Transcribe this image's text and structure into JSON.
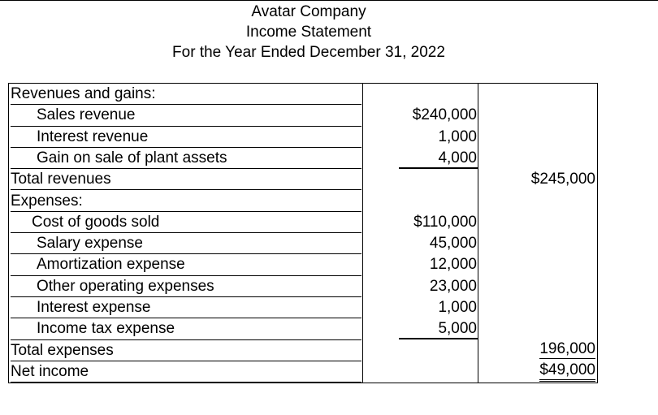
{
  "header": {
    "company": "Avatar Company",
    "statement": "Income Statement",
    "period": "For the Year Ended December 31, 2022"
  },
  "table": {
    "rows": [
      {
        "label": "Revenues and gains:"
      },
      {
        "label": "Sales revenue",
        "amount": "$240,000"
      },
      {
        "label": "Interest revenue",
        "amount": "1,000"
      },
      {
        "label": "Gain on sale of plant assets",
        "amount": "4,000"
      },
      {
        "label": "Total revenues",
        "total": "$245,000"
      },
      {
        "label": "Expenses:"
      },
      {
        "label": "Cost of goods sold",
        "amount": "$110,000"
      },
      {
        "label": "Salary expense",
        "amount": "45,000"
      },
      {
        "label": "Amortization expense",
        "amount": "12,000"
      },
      {
        "label": "Other operating expenses",
        "amount": "23,000"
      },
      {
        "label": "Interest expense",
        "amount": "1,000"
      },
      {
        "label": "Income tax expense",
        "amount": "5,000"
      },
      {
        "label": "Total expenses",
        "total": "196,000"
      },
      {
        "label": "Net income",
        "total": "$49,000"
      }
    ]
  }
}
